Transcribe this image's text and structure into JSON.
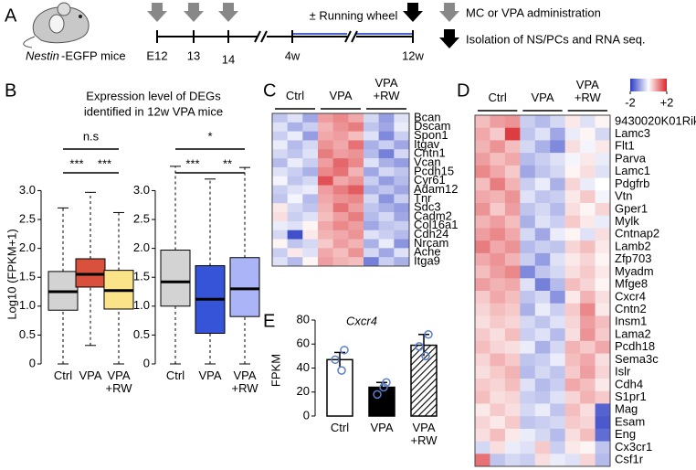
{
  "panels": [
    "A",
    "B",
    "C",
    "D",
    "E"
  ],
  "timeline": {
    "mouse": [
      "Nestin",
      "-EGFP mice"
    ],
    "labels": [
      "E12",
      "13",
      "14",
      "4w",
      "12w"
    ],
    "wheel": "± Running wheel",
    "legend": [
      "MC or VPA administration",
      "Isolation of NS/PCs and RNA seq."
    ]
  },
  "chart_data": [
    {
      "type": "box",
      "title": [
        "Expression level of DEGs",
        "identified in 12w VPA mice"
      ],
      "ylabel": "Log10 (FPKM+1)",
      "categories": [
        "Ctrl",
        "VPA",
        "VPA +RW"
      ],
      "colors": [
        "#d3d3d3",
        "#d9503c",
        "#fbe38a"
      ],
      "boxes": [
        {
          "whislo": 0,
          "q1": 0.93,
          "med": 1.25,
          "q3": 1.6,
          "whishi": 2.7
        },
        {
          "whislo": 0.32,
          "q1": 1.33,
          "med": 1.55,
          "q3": 1.82,
          "whishi": 2.97
        },
        {
          "whislo": 0,
          "q1": 0.95,
          "med": 1.27,
          "q3": 1.62,
          "whishi": 2.62
        }
      ],
      "ylim": [
        0,
        3.45
      ],
      "yticks": [
        0,
        0.5,
        {
          "value": 1,
          "label": "1.0"
        },
        1.5,
        {
          "value": 2,
          "label": "2.0"
        },
        2.5,
        {
          "value": 3,
          "label": "3.0"
        }
      ],
      "annotations": [
        "n.s",
        "***",
        "***"
      ]
    },
    {
      "type": "box",
      "categories": [
        "Ctrl",
        "VPA",
        "VPA +RW"
      ],
      "colors": [
        "#d3d3d3",
        "#3654d8",
        "#aab4f6"
      ],
      "boxes": [
        {
          "whislo": 0,
          "q1": 1.0,
          "med": 1.42,
          "q3": 1.97,
          "whishi": 3.42
        },
        {
          "whislo": 0,
          "q1": 0.53,
          "med": 1.12,
          "q3": 1.7,
          "whishi": 3.2
        },
        {
          "whislo": 0,
          "q1": 0.82,
          "med": 1.3,
          "q3": 1.84,
          "whishi": 3.4
        }
      ],
      "ylim": [
        0,
        3.45
      ],
      "yticks": [
        0,
        0.5,
        {
          "value": 1,
          "label": "1.0"
        },
        1.5,
        {
          "value": 2,
          "label": "2.0"
        },
        2.5,
        {
          "value": 3,
          "label": "3.0"
        }
      ],
      "annotations": [
        "*",
        "***",
        "**"
      ]
    },
    {
      "type": "heatmap",
      "column_groups": [
        "Ctrl",
        "VPA",
        "VPA +RW"
      ],
      "zlim": [
        -2,
        2
      ],
      "colors": [
        "#2b3cc4",
        "#ffffff",
        "#d9262b"
      ],
      "rows": [
        "Bcan",
        "Dscam",
        "Spon1",
        "Itgav",
        "Cntn1",
        "Vcan",
        "Pcdh15",
        "Cyr61",
        "Adam12",
        "Tnr",
        "Sdc3",
        "Cadm2",
        "Col16a1",
        "Cdh24",
        "Nrcam",
        "Ache",
        "Itga9"
      ],
      "values": [
        [
          -0.6,
          -0.3,
          -0.9,
          0.9,
          1.1,
          0.8,
          -0.4,
          -1.0,
          -0.3
        ],
        [
          -0.3,
          -0.8,
          -0.5,
          0.7,
          1.0,
          1.2,
          -0.6,
          -0.9,
          -0.2
        ],
        [
          -0.5,
          -0.2,
          -1.0,
          0.8,
          0.9,
          0.6,
          -0.3,
          -1.2,
          -0.5
        ],
        [
          -0.2,
          -0.7,
          -0.4,
          1.0,
          0.8,
          1.3,
          -0.8,
          -0.5,
          -0.9
        ],
        [
          -0.4,
          -0.6,
          -0.3,
          1.2,
          0.9,
          1.0,
          -0.7,
          -1.3,
          -0.4
        ],
        [
          -0.7,
          -0.2,
          -0.5,
          0.9,
          1.4,
          1.1,
          -0.3,
          -0.8,
          -1.0
        ],
        [
          -0.3,
          -0.5,
          -0.8,
          1.1,
          1.3,
          0.7,
          -0.9,
          -0.4,
          -0.6
        ],
        [
          -0.1,
          -0.6,
          -0.4,
          1.6,
          0.8,
          1.0,
          -0.5,
          -1.0,
          -0.7
        ],
        [
          -0.5,
          -0.3,
          -0.2,
          0.9,
          1.2,
          1.5,
          -0.8,
          -0.6,
          -0.9
        ],
        [
          -0.6,
          -0.1,
          -0.7,
          0.8,
          1.0,
          1.1,
          -0.4,
          -1.1,
          -0.5
        ],
        [
          0.2,
          -0.4,
          -0.6,
          0.7,
          1.3,
          0.9,
          -0.6,
          -0.8,
          -1.0
        ],
        [
          0.3,
          -0.5,
          -0.3,
          0.6,
          0.9,
          1.2,
          -0.7,
          -0.4,
          -0.9
        ],
        [
          -0.2,
          -0.3,
          0.1,
          0.8,
          1.1,
          0.9,
          -0.9,
          -0.6,
          -0.5
        ],
        [
          -0.4,
          -1.8,
          0.2,
          0.7,
          0.8,
          1.0,
          -0.3,
          -0.5,
          -0.7
        ],
        [
          0.1,
          -0.6,
          -0.4,
          0.5,
          0.9,
          0.7,
          -0.8,
          -0.2,
          -1.1
        ],
        [
          -0.5,
          0.2,
          -0.3,
          0.8,
          0.6,
          1.0,
          -0.4,
          -0.9,
          -0.3
        ],
        [
          -0.3,
          -0.7,
          0.1,
          0.9,
          0.7,
          0.6,
          -1.3,
          -0.5,
          -0.8
        ]
      ]
    },
    {
      "type": "heatmap",
      "column_groups": [
        "Ctrl",
        "VPA",
        "VPA +RW"
      ],
      "zlim": [
        -2,
        2
      ],
      "zticks": [
        -2,
        {
          "value": 2,
          "label": "+2"
        }
      ],
      "colors": [
        "#2b3cc4",
        "#ffffff",
        "#d9262b"
      ],
      "highlight_row": 14,
      "highlight_color": "#e0201e",
      "rows": [
        "9430020K01Rik",
        "Lamc3",
        "Flt1",
        "Parva",
        "Lamc1",
        "Pdgfrb",
        "Vtn",
        "Gper1",
        "Mylk",
        "Cntnap2",
        "Lamb2",
        "Zfp703",
        "Myadm",
        "Mfge8",
        "Cxcr4",
        "Cntn2",
        "Insm1",
        "Lama2",
        "Pcdh18",
        "Sema3c",
        "Islr",
        "Cdh4",
        "S1pr1",
        "Mag",
        "Esam",
        "Eng",
        "Cx3cr1",
        "Csf1r"
      ],
      "values": [
        [
          0.6,
          0.9,
          1.0,
          -0.5,
          -0.7,
          -0.4,
          0.2,
          -0.3,
          0.1
        ],
        [
          0.8,
          0.5,
          1.8,
          -0.6,
          -0.3,
          -0.9,
          -0.2,
          0.1,
          -0.4
        ],
        [
          0.7,
          1.0,
          0.6,
          -0.4,
          -0.8,
          -1.2,
          0.3,
          -0.1,
          0.2
        ],
        [
          0.9,
          0.6,
          0.8,
          -0.7,
          -0.5,
          -0.3,
          -0.1,
          0.2,
          -0.2
        ],
        [
          1.1,
          0.8,
          0.5,
          -0.9,
          -0.6,
          -0.4,
          0.1,
          0.3,
          -0.3
        ],
        [
          0.6,
          1.2,
          0.7,
          -0.5,
          -0.2,
          -0.8,
          0.4,
          -0.2,
          0.0
        ],
        [
          0.8,
          0.7,
          1.0,
          -0.3,
          -0.6,
          -0.5,
          0.2,
          0.5,
          -0.1
        ],
        [
          1.0,
          0.5,
          0.9,
          -0.6,
          -0.4,
          -0.7,
          0.3,
          0.1,
          0.4
        ],
        [
          0.7,
          0.9,
          0.6,
          -0.8,
          -0.3,
          -0.5,
          0.5,
          0.2,
          -0.2
        ],
        [
          0.9,
          1.1,
          0.8,
          -0.4,
          -0.9,
          -0.2,
          0.1,
          -0.3,
          0.3
        ],
        [
          1.2,
          0.8,
          1.0,
          -0.7,
          -0.5,
          -0.6,
          0.4,
          0.6,
          0.2
        ],
        [
          0.8,
          1.0,
          0.7,
          -0.5,
          -1.0,
          -0.3,
          0.2,
          0.4,
          0.1
        ],
        [
          0.6,
          0.9,
          1.1,
          -1.2,
          -0.6,
          -0.4,
          0.3,
          0.5,
          0.2
        ],
        [
          0.9,
          0.7,
          0.8,
          -0.3,
          -1.3,
          -0.7,
          0.6,
          0.4,
          0.1
        ],
        [
          0.5,
          0.8,
          0.6,
          -0.6,
          -0.4,
          -1.1,
          0.2,
          0.7,
          0.3
        ],
        [
          0.4,
          0.6,
          0.5,
          -0.8,
          -0.2,
          -0.5,
          0.5,
          1.1,
          0.2
        ],
        [
          0.3,
          0.5,
          0.4,
          -0.4,
          -0.6,
          -0.3,
          0.4,
          0.9,
          0.6
        ],
        [
          0.5,
          0.3,
          0.6,
          -0.5,
          -0.3,
          -0.7,
          0.3,
          1.0,
          0.5
        ],
        [
          0.6,
          0.4,
          0.3,
          -0.2,
          -0.8,
          -0.4,
          0.7,
          0.5,
          0.8
        ],
        [
          0.4,
          0.7,
          0.5,
          -0.6,
          -0.5,
          -0.2,
          0.6,
          0.8,
          0.3
        ],
        [
          0.3,
          0.5,
          0.7,
          -0.7,
          -0.4,
          -0.6,
          0.5,
          0.9,
          0.4
        ],
        [
          0.5,
          0.4,
          0.6,
          -0.3,
          -0.7,
          -0.5,
          0.8,
          0.6,
          0.2
        ],
        [
          0.6,
          0.3,
          0.4,
          -0.5,
          -0.6,
          -0.3,
          0.4,
          0.7,
          0.5
        ],
        [
          0.2,
          0.5,
          0.3,
          -0.4,
          -0.2,
          -0.6,
          0.6,
          0.3,
          -1.6
        ],
        [
          0.4,
          0.2,
          0.5,
          -0.6,
          -0.5,
          -0.4,
          0.5,
          0.4,
          -1.7
        ],
        [
          0.3,
          0.6,
          0.2,
          -0.2,
          -0.4,
          -0.7,
          0.3,
          0.6,
          -1.5
        ],
        [
          -0.4,
          0.3,
          -0.2,
          -0.3,
          0.5,
          -0.5,
          0.2,
          0.1,
          -0.6
        ],
        [
          1.3,
          -0.6,
          -0.4,
          -0.5,
          0.3,
          -0.2,
          -0.3,
          0.4,
          -0.7
        ]
      ]
    },
    {
      "type": "bar",
      "title": "Cxcr4",
      "ylabel": "FPKM",
      "categories": [
        "Ctrl",
        "VPA",
        "VPA +RW"
      ],
      "values": [
        47,
        24,
        59
      ],
      "errors": [
        6,
        4,
        9
      ],
      "points": [
        [
          55,
          47,
          38
        ],
        [
          28,
          18,
          24
        ],
        [
          68,
          58,
          50
        ]
      ],
      "colors": [
        "#ffffff",
        "#000000",
        "#ffffff"
      ],
      "patterns": [
        "none",
        "none",
        "hatch"
      ],
      "point_color": "#5b7fc9",
      "ylim": [
        0,
        80
      ],
      "yticks": [
        0,
        20,
        40,
        60,
        80
      ]
    }
  ]
}
